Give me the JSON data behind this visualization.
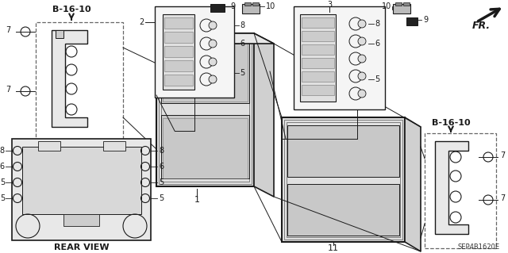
{
  "bg_color": "#ffffff",
  "lc": "#1a1a1a",
  "dc": "#444444",
  "gc": "#888888",
  "labels": {
    "B16_left": "B-16-10",
    "B16_right": "B-16-10",
    "rear_view": "REAR VIEW",
    "FR": "FR.",
    "part_num": "SEP4B1620E"
  },
  "figsize": [
    6.4,
    3.19
  ],
  "dpi": 100,
  "xlim": [
    0,
    640
  ],
  "ylim": [
    0,
    319
  ]
}
